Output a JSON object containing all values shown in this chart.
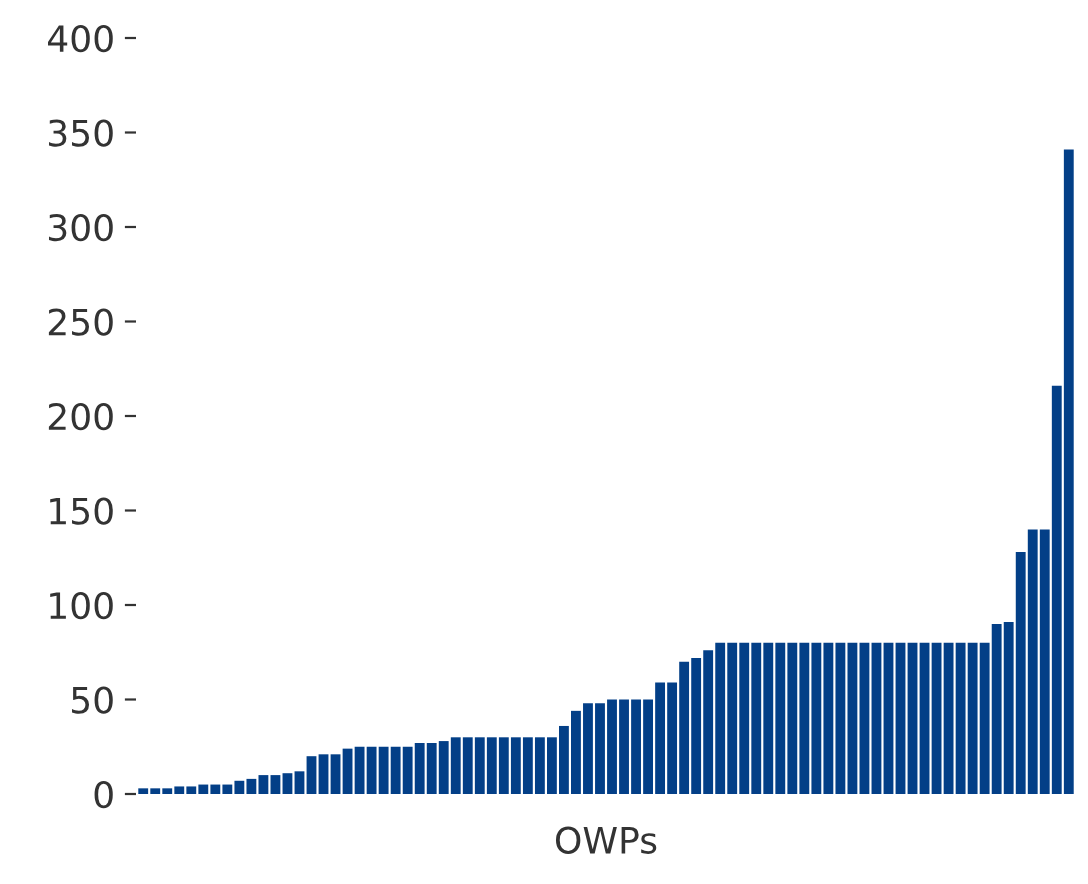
{
  "chart_data": {
    "type": "bar",
    "xlabel": "OWPs",
    "categories": [
      null,
      null,
      null,
      null,
      null,
      null,
      null,
      null,
      null,
      null,
      null,
      null,
      null,
      null,
      null,
      null,
      null,
      null,
      null,
      null,
      null,
      null,
      null,
      null,
      null,
      null,
      null,
      null,
      null,
      null,
      null,
      null,
      null,
      null,
      null,
      null,
      null,
      null,
      null,
      null,
      null,
      null,
      null,
      null,
      null,
      null,
      null,
      null,
      null,
      null,
      null,
      null,
      null,
      null,
      null,
      null,
      null,
      null,
      null,
      null,
      null,
      null,
      null,
      null,
      null,
      null,
      null,
      null,
      null,
      null,
      null,
      null,
      null,
      null,
      null,
      null,
      null,
      null
    ],
    "values": [
      3,
      3,
      3,
      4,
      4,
      5,
      5,
      5,
      7,
      8,
      10,
      10,
      11,
      12,
      20,
      21,
      21,
      24,
      25,
      25,
      25,
      25,
      25,
      27,
      27,
      28,
      30,
      30,
      30,
      30,
      30,
      30,
      30,
      30,
      30,
      36,
      44,
      48,
      48,
      50,
      50,
      50,
      50,
      59,
      59,
      70,
      72,
      76,
      80,
      80,
      80,
      80,
      80,
      80,
      80,
      80,
      80,
      80,
      80,
      80,
      80,
      80,
      80,
      80,
      80,
      80,
      80,
      80,
      80,
      80,
      80,
      90,
      91,
      128,
      140,
      140,
      216,
      341
    ],
    "color": "#033f87",
    "ylim": [
      0,
      400
    ],
    "yticks": [
      0,
      50,
      100,
      150,
      200,
      250,
      300,
      350,
      400
    ],
    "grid": false
  }
}
